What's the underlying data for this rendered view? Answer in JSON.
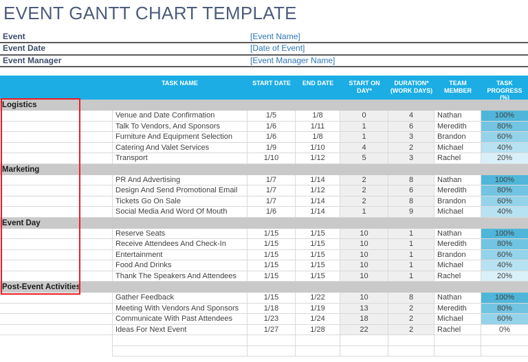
{
  "page_title": "EVENT GANTT CHART TEMPLATE",
  "info": {
    "rows": [
      {
        "label": "Event",
        "value": "[Event Name]"
      },
      {
        "label": "Event Date",
        "value": "[Date of Event]"
      },
      {
        "label": "Event Manager",
        "value": "[Event Manager Name]"
      }
    ]
  },
  "table": {
    "headers": {
      "task_name": "TASK NAME",
      "start_date": "START DATE",
      "end_date": "END DATE",
      "start_on_day": "START ON DAY*",
      "duration": "DURATION* (WORK DAYS)",
      "team_member": "TEAM MEMBER",
      "progress": "TASK PROGRESS (%)"
    },
    "sections": [
      {
        "name": "Logistics",
        "tasks": [
          {
            "task_name": "Venue and Date Confirmation",
            "start_date": "1/5",
            "end_date": "1/8",
            "start_on_day": "0",
            "duration": "4",
            "team_member": "Nathan",
            "progress": "100%"
          },
          {
            "task_name": "Talk To Vendors, And Sponsors",
            "start_date": "1/6",
            "end_date": "1/11",
            "start_on_day": "1",
            "duration": "6",
            "team_member": "Meredith",
            "progress": "80%"
          },
          {
            "task_name": "Furniture And Equipment Selection",
            "start_date": "1/6",
            "end_date": "1/8",
            "start_on_day": "1",
            "duration": "3",
            "team_member": "Brandon",
            "progress": "60%"
          },
          {
            "task_name": "Catering And Valet Services",
            "start_date": "1/9",
            "end_date": "1/10",
            "start_on_day": "4",
            "duration": "2",
            "team_member": "Michael",
            "progress": "40%"
          },
          {
            "task_name": "Transport",
            "start_date": "1/10",
            "end_date": "1/12",
            "start_on_day": "5",
            "duration": "3",
            "team_member": "Rachel",
            "progress": "20%"
          }
        ]
      },
      {
        "name": "Marketing",
        "tasks": [
          {
            "task_name": "PR And Advertising",
            "start_date": "1/7",
            "end_date": "1/14",
            "start_on_day": "2",
            "duration": "8",
            "team_member": "Nathan",
            "progress": "100%"
          },
          {
            "task_name": "Design And Send Promotional Email",
            "start_date": "1/7",
            "end_date": "1/12",
            "start_on_day": "2",
            "duration": "6",
            "team_member": "Meredith",
            "progress": "80%"
          },
          {
            "task_name": "Tickets Go On Sale",
            "start_date": "1/7",
            "end_date": "1/14",
            "start_on_day": "2",
            "duration": "8",
            "team_member": "Brandon",
            "progress": "60%"
          },
          {
            "task_name": "Social Media And Word Of Mouth",
            "start_date": "1/6",
            "end_date": "1/14",
            "start_on_day": "1",
            "duration": "9",
            "team_member": "Michael",
            "progress": "40%"
          }
        ]
      },
      {
        "name": "Event Day",
        "tasks": [
          {
            "task_name": "Reserve Seats",
            "start_date": "1/15",
            "end_date": "1/15",
            "start_on_day": "10",
            "duration": "1",
            "team_member": "Nathan",
            "progress": "100%"
          },
          {
            "task_name": "Receive Attendees And Check-In",
            "start_date": "1/15",
            "end_date": "1/15",
            "start_on_day": "10",
            "duration": "1",
            "team_member": "Meredith",
            "progress": "80%"
          },
          {
            "task_name": "Entertainment",
            "start_date": "1/15",
            "end_date": "1/15",
            "start_on_day": "10",
            "duration": "1",
            "team_member": "Brandon",
            "progress": "60%"
          },
          {
            "task_name": "Food And Drinks",
            "start_date": "1/15",
            "end_date": "1/15",
            "start_on_day": "10",
            "duration": "1",
            "team_member": "Michael",
            "progress": "40%"
          },
          {
            "task_name": "Thank The Speakers And Attendees",
            "start_date": "1/15",
            "end_date": "1/15",
            "start_on_day": "10",
            "duration": "1",
            "team_member": "Rachel",
            "progress": "20%"
          }
        ]
      },
      {
        "name": "Post-Event Activities",
        "tasks": [
          {
            "task_name": "Gather Feedback",
            "start_date": "1/15",
            "end_date": "1/22",
            "start_on_day": "10",
            "duration": "8",
            "team_member": "Nathan",
            "progress": "100%"
          },
          {
            "task_name": "Meeting With Vendors And Sponsors",
            "start_date": "1/18",
            "end_date": "1/19",
            "start_on_day": "13",
            "duration": "2",
            "team_member": "Meredith",
            "progress": "80%"
          },
          {
            "task_name": "Communicate With Past Attendees",
            "start_date": "1/23",
            "end_date": "1/24",
            "start_on_day": "18",
            "duration": "2",
            "team_member": "Michael",
            "progress": "60%"
          },
          {
            "task_name": "Ideas For Next Event",
            "start_date": "1/27",
            "end_date": "1/28",
            "start_on_day": "22",
            "duration": "2",
            "team_member": "Rachel",
            "progress": "0%"
          }
        ]
      }
    ],
    "empty_row_count": 2
  },
  "colors": {
    "header_bg": "#1CADE4",
    "section_bg": "#C9C9C9",
    "calc_col_bg": "#EFEFEF",
    "title_color": "#4C5C7A",
    "label_color": "#3D4D69",
    "value_color": "#2E75B6",
    "highlight_border": "#ED1C24",
    "progress_scale": {
      "100%": "#4FB6D9",
      "80%": "#72C5E2",
      "60%": "#95D3EA",
      "40%": "#B7E2F1",
      "20%": "#DAF0F9",
      "0%": "#FFFFFF"
    }
  }
}
